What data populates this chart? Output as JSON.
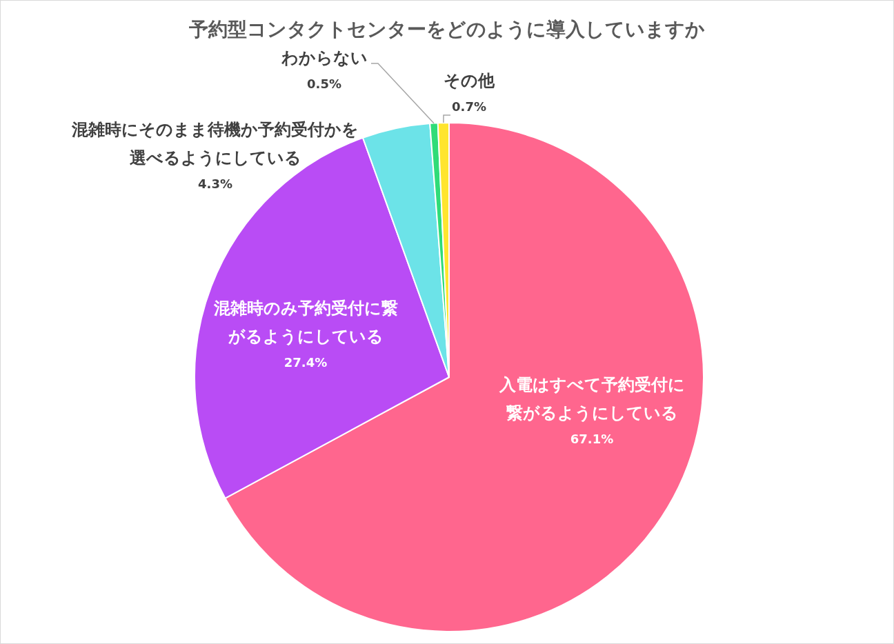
{
  "chart_data": {
    "type": "pie",
    "title": "予約型コンタクトセンターをどのように導入していますか",
    "categories": [
      "入電はすべて予約受付に繋がるようにしている",
      "混雑時のみ予約受付に繋がるようにしている",
      "混雑時にそのまま待機か予約受付かを選べるようにしている",
      "わからない",
      "その他"
    ],
    "values": [
      67.1,
      27.4,
      4.3,
      0.5,
      0.7
    ],
    "value_labels": [
      "67.1%",
      "27.4%",
      "4.3%",
      "0.5%",
      "0.7%"
    ],
    "colors": [
      "#ff668e",
      "#b94cf5",
      "#6ce3e8",
      "#2fdc78",
      "#ffe52e"
    ]
  }
}
